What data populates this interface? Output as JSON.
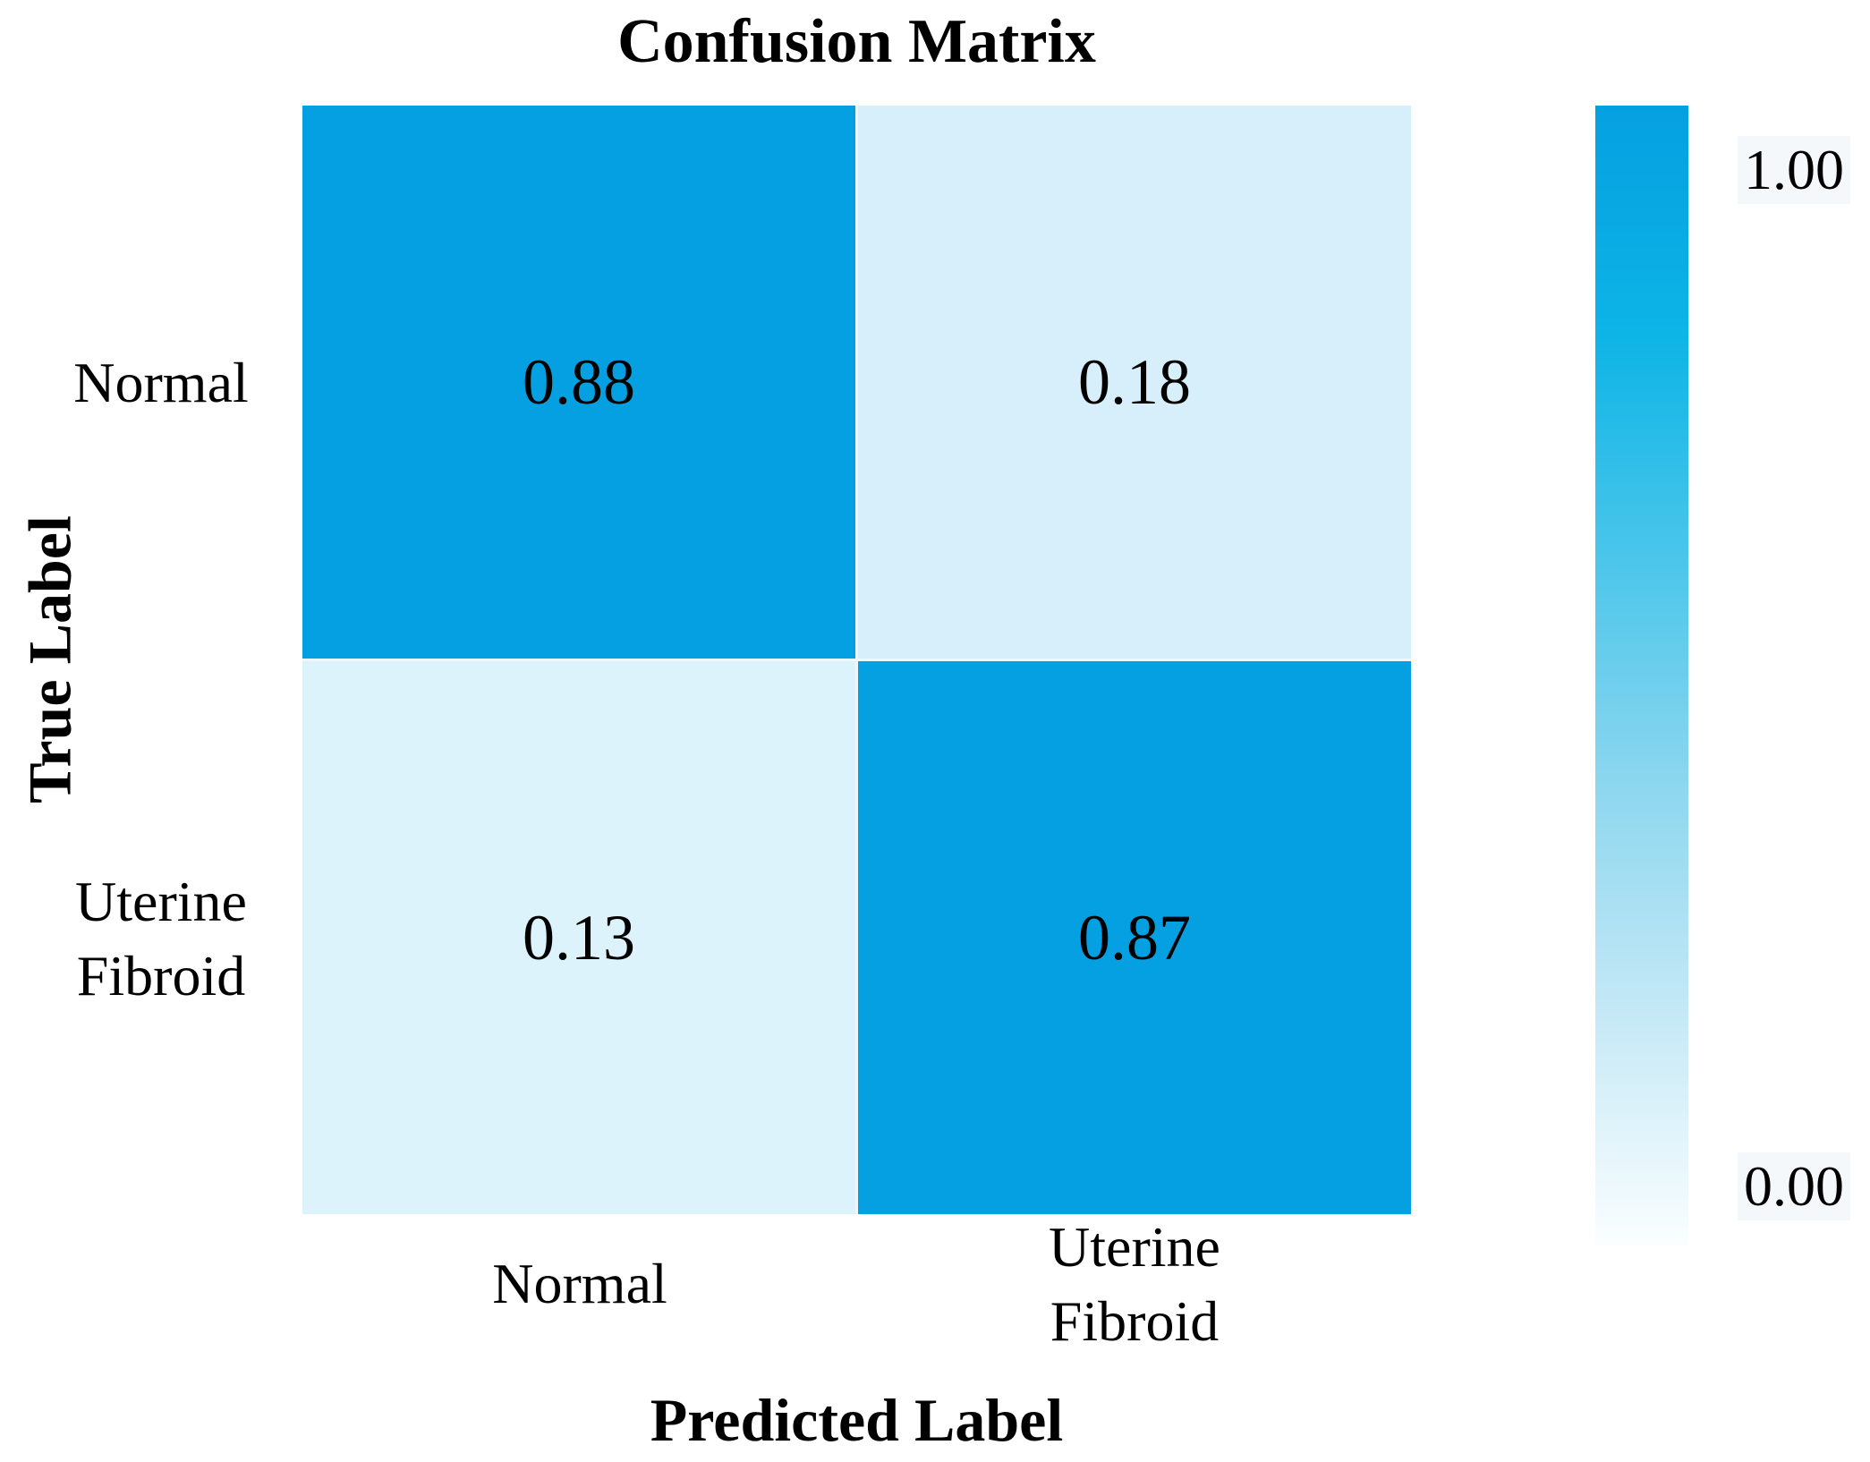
{
  "chart_data": {
    "type": "heatmap",
    "title": "Confusion Matrix",
    "xlabel": "Predicted Label",
    "ylabel": "True Label",
    "x_tick_labels": [
      "Normal",
      "Uterine Fibroid"
    ],
    "y_tick_labels": [
      "Normal",
      "Uterine Fibroid"
    ],
    "rows": [
      {
        "true_label": "Normal",
        "values": [
          0.88,
          0.18
        ]
      },
      {
        "true_label": "Uterine Fibroid",
        "values": [
          0.13,
          0.87
        ]
      }
    ],
    "cell_labels": [
      [
        "0.88",
        "0.18"
      ],
      [
        "0.13",
        "0.87"
      ]
    ],
    "value_range": [
      0,
      1
    ],
    "grid": false,
    "colorbar": {
      "position": "right",
      "max_label": "1.00",
      "min_label": "0.00"
    },
    "colors": {
      "high": "#05a0e1",
      "low": "#ffffff",
      "cells": [
        [
          "#05a0e1",
          "#d6effa"
        ],
        [
          "#dcf3fb",
          "#05a0e1"
        ]
      ],
      "gradient_stops": [
        "#05a0e1",
        "#0db4e6",
        "#4cc6ea",
        "#8ed7ef",
        "#c6e9f6",
        "#fbfeff"
      ]
    }
  }
}
